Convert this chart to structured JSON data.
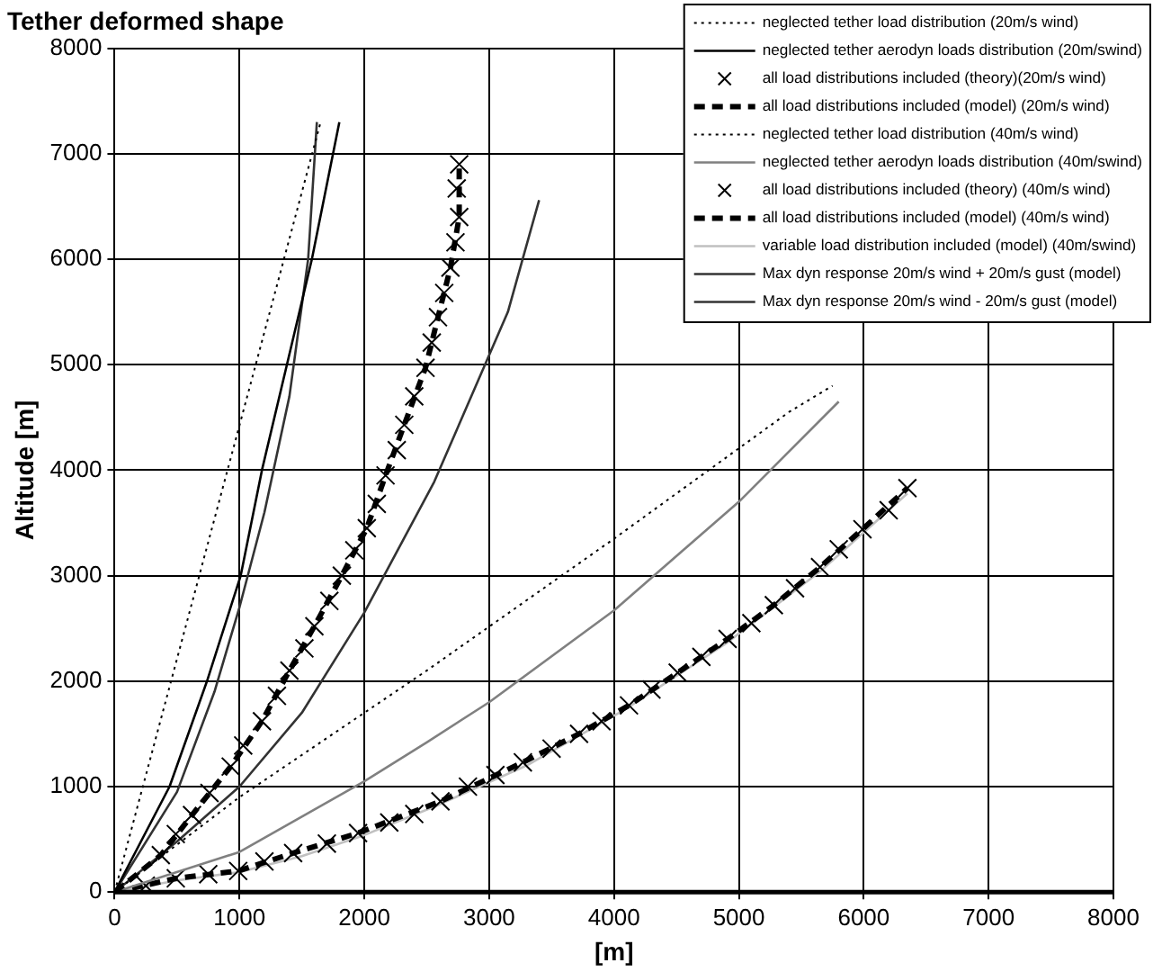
{
  "chart_data": {
    "type": "line",
    "title": "Tether deformed shape",
    "xlabel": "[m]",
    "ylabel": "Altitude [m]",
    "xlim": [
      0,
      8000
    ],
    "ylim": [
      0,
      8000
    ],
    "xticks": [
      0,
      1000,
      2000,
      3000,
      4000,
      5000,
      6000,
      7000,
      8000
    ],
    "yticks": [
      0,
      1000,
      2000,
      3000,
      4000,
      5000,
      6000,
      7000,
      8000
    ],
    "grid": true,
    "legend": "top right",
    "series": [
      {
        "name": "neglected tether load distribution (20m/s wind)",
        "type": "line",
        "line_style": "dotted",
        "marker": "none",
        "color": "#000000",
        "x": [
          0,
          1650
        ],
        "values": [
          0,
          7300
        ]
      },
      {
        "name": "neglected tether aerodyn loads distribution (20m/swind)",
        "type": "line",
        "line_style": "solid",
        "marker": "none",
        "color": "#000000",
        "x": [
          0,
          440,
          740,
          1010,
          1180,
          1380,
          1580,
          1800
        ],
        "values": [
          0,
          1000,
          2000,
          3000,
          4000,
          5000,
          6000,
          7300
        ]
      },
      {
        "name": "all load distributions included (theory)(20m/s wind)",
        "type": "scatter",
        "marker": "cross",
        "color": "#000000",
        "x": [
          0,
          370,
          490,
          620,
          760,
          930,
          1030,
          1180,
          1300,
          1400,
          1520,
          1600,
          1720,
          1820,
          1920,
          2020,
          2100,
          2170,
          2260,
          2320,
          2400,
          2490,
          2540,
          2590,
          2640,
          2690,
          2730,
          2760,
          2740,
          2760
        ],
        "values": [
          0,
          350,
          550,
          730,
          940,
          1190,
          1390,
          1620,
          1860,
          2100,
          2310,
          2520,
          2760,
          3000,
          3240,
          3450,
          3680,
          3950,
          4190,
          4430,
          4700,
          4970,
          5210,
          5450,
          5680,
          5920,
          6160,
          6400,
          6670,
          6900
        ]
      },
      {
        "name": "all load distributions included (model) (20m/s wind)",
        "type": "line",
        "line_style": "dashed",
        "marker": "none",
        "color": "#000000",
        "x": [
          0,
          370,
          620,
          930,
          1180,
          1400,
          1600,
          1820,
          2020,
          2170,
          2320,
          2490,
          2590,
          2690,
          2760,
          2760
        ],
        "values": [
          0,
          350,
          730,
          1190,
          1620,
          2100,
          2520,
          3000,
          3450,
          3950,
          4430,
          4970,
          5450,
          5920,
          6400,
          6900
        ]
      },
      {
        "name": "neglected tether load distribution (40m/s wind)",
        "type": "line",
        "line_style": "dotted",
        "marker": "none",
        "color": "#000000",
        "x": [
          0,
          1000,
          2500,
          4000,
          5400,
          5750
        ],
        "values": [
          0,
          900,
          2100,
          3350,
          4550,
          4800
        ]
      },
      {
        "name": "neglected tether aerodyn loads distribution (40m/swind)",
        "type": "line",
        "line_style": "solid",
        "marker": "none",
        "color": "#808080",
        "x": [
          0,
          1000,
          2000,
          2500,
          3000,
          4000,
          5000,
          5800
        ],
        "values": [
          0,
          380,
          1050,
          1420,
          1800,
          2670,
          3700,
          4650
        ]
      },
      {
        "name": "all load distributions included (theory) (40m/s wind)",
        "type": "scatter",
        "marker": "cross",
        "color": "#000000",
        "x": [
          0,
          250,
          490,
          750,
          990,
          1200,
          1430,
          1700,
          1950,
          2200,
          2400,
          2610,
          2830,
          3050,
          3270,
          3500,
          3720,
          3900,
          4120,
          4300,
          4510,
          4700,
          4910,
          5100,
          5280,
          5450,
          5650,
          5800,
          5990,
          6200,
          6350
        ],
        "values": [
          0,
          60,
          130,
          170,
          200,
          290,
          370,
          460,
          560,
          660,
          740,
          860,
          1000,
          1110,
          1230,
          1360,
          1500,
          1620,
          1770,
          1920,
          2080,
          2230,
          2400,
          2550,
          2720,
          2880,
          3080,
          3250,
          3440,
          3620,
          3830
        ]
      },
      {
        "name": "all load distributions included (model) (40m/s wind)",
        "type": "line",
        "line_style": "dashed",
        "marker": "none",
        "color": "#000000",
        "x": [
          0,
          490,
          990,
          1430,
          1950,
          2610,
          3270,
          3720,
          4120,
          4510,
          4910,
          5280,
          5650,
          5990,
          6350
        ],
        "values": [
          0,
          130,
          200,
          370,
          560,
          860,
          1230,
          1500,
          1770,
          2080,
          2400,
          2720,
          3080,
          3440,
          3830
        ]
      },
      {
        "name": "variable load distribution included (model) (40m/swind)",
        "type": "line",
        "line_style": "solid",
        "marker": "none",
        "color": "#c0c0c0",
        "x": [
          0,
          500,
          1000,
          1500,
          2000,
          2600,
          3300,
          4100,
          4900,
          5650,
          6350
        ],
        "values": [
          0,
          110,
          190,
          340,
          540,
          830,
          1200,
          1740,
          2360,
          3040,
          3780
        ]
      },
      {
        "name": "Max dyn response 20m/s wind + 20m/s gust (model)",
        "type": "line",
        "line_style": "solid",
        "marker": "none",
        "color": "#333333",
        "x": [
          0,
          500,
          1000,
          1500,
          2000,
          2560,
          3150,
          3400
        ],
        "values": [
          0,
          480,
          1000,
          1700,
          2650,
          3890,
          5500,
          6560
        ]
      },
      {
        "name": "Max dyn response 20m/s wind - 20m/s gust (model)",
        "type": "line",
        "line_style": "solid",
        "marker": "none",
        "color": "#333333",
        "x": [
          0,
          500,
          800,
          1000,
          1200,
          1400,
          1550,
          1620
        ],
        "values": [
          0,
          950,
          1900,
          2700,
          3600,
          4700,
          6000,
          7300
        ]
      }
    ]
  }
}
